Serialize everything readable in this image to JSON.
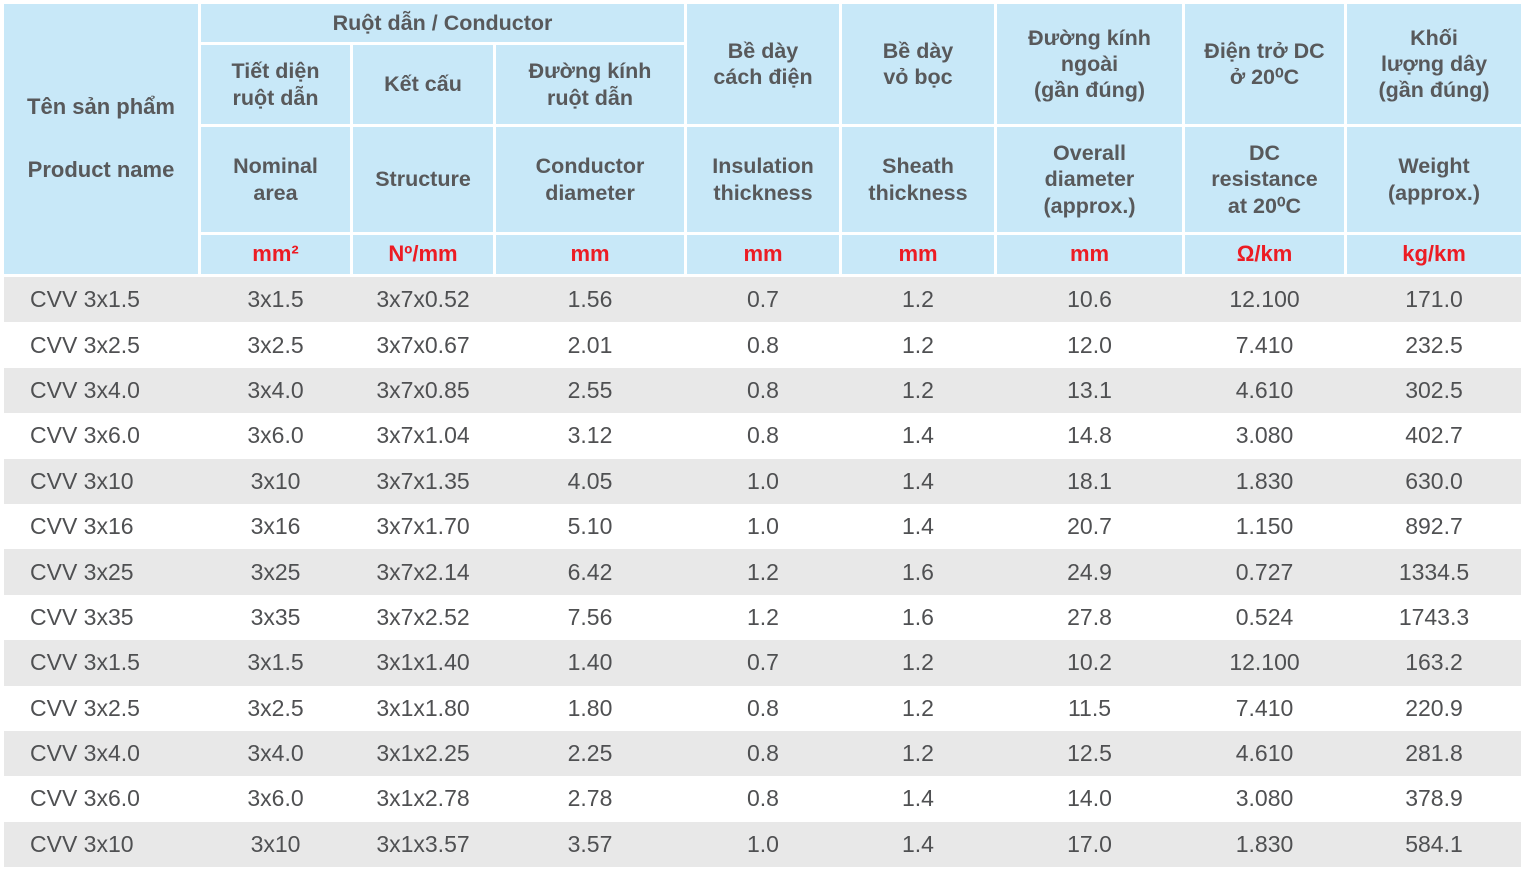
{
  "colors": {
    "header_bg": "#c8e8f8",
    "stripe": "#e8e8e8",
    "header_text": "#58595b",
    "data_text": "#4f5052",
    "unit_red": "#ec1c24"
  },
  "header": {
    "product_name_vi": "Tên sản phẩm",
    "product_name_en": "Product name",
    "conductor_group": "Ruột dẫn / Conductor",
    "columns": [
      {
        "vi": "Tiết diện\nruột dẫn",
        "en": "Nominal\narea",
        "unit": "mm²"
      },
      {
        "vi": "Kết cấu",
        "en": "Structure",
        "unit": "Nº/mm"
      },
      {
        "vi": "Đường kính\nruột dẫn",
        "en": "Conductor\ndiameter",
        "unit": "mm"
      },
      {
        "vi": "Bề dày\ncách điện",
        "en": "Insulation\nthickness",
        "unit": "mm"
      },
      {
        "vi": "Bề dày\nvỏ bọc",
        "en": "Sheath\nthickness",
        "unit": "mm"
      },
      {
        "vi": "Đường kính\nngoài\n(gần đúng)",
        "en": "Overall\ndiameter\n(approx.)",
        "unit": "mm"
      },
      {
        "vi": "Điện trở DC\nở 20⁰C",
        "en": "DC\nresistance\nat 20⁰C",
        "unit": "Ω/km"
      },
      {
        "vi": "Khối\nlượng dây\n(gần đúng)",
        "en": "Weight\n(approx.)",
        "unit": "kg/km"
      }
    ]
  },
  "rows": [
    [
      "CVV 3x1.5",
      "3x1.5",
      "3x7x0.52",
      "1.56",
      "0.7",
      "1.2",
      "10.6",
      "12.100",
      "171.0"
    ],
    [
      "CVV 3x2.5",
      "3x2.5",
      "3x7x0.67",
      "2.01",
      "0.8",
      "1.2",
      "12.0",
      "7.410",
      "232.5"
    ],
    [
      "CVV 3x4.0",
      "3x4.0",
      "3x7x0.85",
      "2.55",
      "0.8",
      "1.2",
      "13.1",
      "4.610",
      "302.5"
    ],
    [
      "CVV 3x6.0",
      "3x6.0",
      "3x7x1.04",
      "3.12",
      "0.8",
      "1.4",
      "14.8",
      "3.080",
      "402.7"
    ],
    [
      "CVV 3x10",
      "3x10",
      "3x7x1.35",
      "4.05",
      "1.0",
      "1.4",
      "18.1",
      "1.830",
      "630.0"
    ],
    [
      "CVV 3x16",
      "3x16",
      "3x7x1.70",
      "5.10",
      "1.0",
      "1.4",
      "20.7",
      "1.150",
      "892.7"
    ],
    [
      "CVV 3x25",
      "3x25",
      "3x7x2.14",
      "6.42",
      "1.2",
      "1.6",
      "24.9",
      "0.727",
      "1334.5"
    ],
    [
      "CVV 3x35",
      "3x35",
      "3x7x2.52",
      "7.56",
      "1.2",
      "1.6",
      "27.8",
      "0.524",
      "1743.3"
    ],
    [
      "CVV 3x1.5",
      "3x1.5",
      "3x1x1.40",
      "1.40",
      "0.7",
      "1.2",
      "10.2",
      "12.100",
      "163.2"
    ],
    [
      "CVV 3x2.5",
      "3x2.5",
      "3x1x1.80",
      "1.80",
      "0.8",
      "1.2",
      "11.5",
      "7.410",
      "220.9"
    ],
    [
      "CVV 3x4.0",
      "3x4.0",
      "3x1x2.25",
      "2.25",
      "0.8",
      "1.2",
      "12.5",
      "4.610",
      "281.8"
    ],
    [
      "CVV 3x6.0",
      "3x6.0",
      "3x1x2.78",
      "2.78",
      "0.8",
      "1.4",
      "14.0",
      "3.080",
      "378.9"
    ],
    [
      "CVV 3x10",
      "3x10",
      "3x1x3.57",
      "3.57",
      "1.0",
      "1.4",
      "17.0",
      "1.830",
      "584.1"
    ]
  ]
}
